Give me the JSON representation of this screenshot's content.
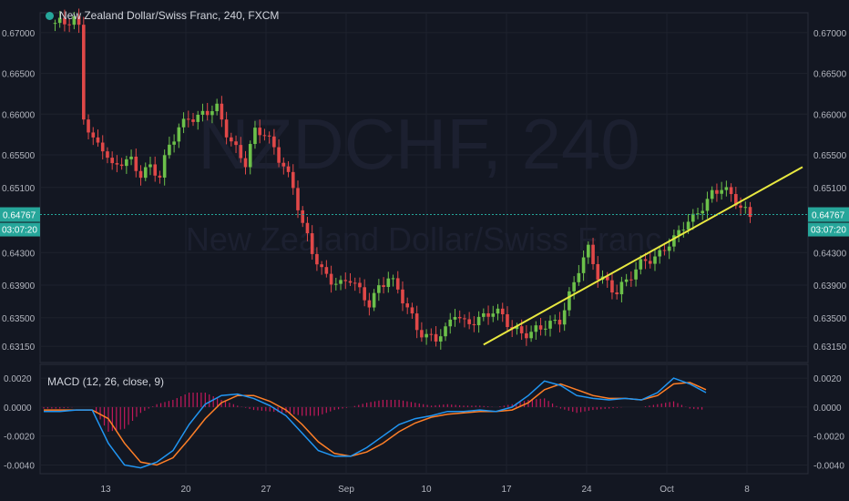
{
  "header": {
    "title": "New Zealand Dollar/Swiss Franc, 240, FXCM"
  },
  "watermark": {
    "symbol": "NZDCHF, 240",
    "name": "New Zealand Dollar/Swiss Franc"
  },
  "price_badges": {
    "last": "0.64767",
    "countdown": "03:07:20"
  },
  "macd": {
    "label": "MACD (12, 26, close, 9)"
  },
  "colors": {
    "background": "#131722",
    "grid": "#1e222d",
    "up": "#6cc04a",
    "down": "#e04848",
    "trendline": "#e8e840",
    "price_line": "#26a69a",
    "macd_line": "#2196f3",
    "signal_line": "#ff7f27",
    "hist_pos": "#c2185b",
    "hist_neg": "#c2185b"
  },
  "chart_data": [
    {
      "type": "candlestick",
      "title": "New Zealand Dollar/Swiss Franc, 240, FXCM",
      "y_ticks": [
        "0.67000",
        "0.66500",
        "0.66000",
        "0.65500",
        "0.65100",
        "0.64300",
        "0.63900",
        "0.63500",
        "0.63150"
      ],
      "y_tick_values": [
        0.67,
        0.665,
        0.66,
        0.655,
        0.651,
        0.643,
        0.639,
        0.635,
        0.6315
      ],
      "ylim": [
        0.6295,
        0.672
      ],
      "x_ticks": [
        "13",
        "20",
        "27",
        "Sep",
        "10",
        "17",
        "24",
        "Oct",
        "8"
      ],
      "last_price": 0.64767,
      "approx_closes": [
        [
          0,
          0.6712
        ],
        [
          2,
          0.6708
        ],
        [
          4,
          0.6715
        ],
        [
          5,
          0.6705
        ],
        [
          6,
          0.66
        ],
        [
          8,
          0.657
        ],
        [
          10,
          0.656
        ],
        [
          12,
          0.653
        ],
        [
          14,
          0.654
        ],
        [
          16,
          0.6545
        ],
        [
          18,
          0.653
        ],
        [
          20,
          0.6535
        ],
        [
          22,
          0.652
        ],
        [
          24,
          0.656
        ],
        [
          26,
          0.6585
        ],
        [
          28,
          0.66
        ],
        [
          30,
          0.6595
        ],
        [
          32,
          0.66
        ],
        [
          34,
          0.6605
        ],
        [
          36,
          0.658
        ],
        [
          38,
          0.656
        ],
        [
          40,
          0.654
        ],
        [
          42,
          0.6575
        ],
        [
          44,
          0.6575
        ],
        [
          46,
          0.656
        ],
        [
          48,
          0.654
        ],
        [
          50,
          0.651
        ],
        [
          52,
          0.646
        ],
        [
          54,
          0.643
        ],
        [
          56,
          0.641
        ],
        [
          58,
          0.64
        ],
        [
          60,
          0.639
        ],
        [
          62,
          0.6395
        ],
        [
          64,
          0.638
        ],
        [
          66,
          0.637
        ],
        [
          68,
          0.639
        ],
        [
          70,
          0.64
        ],
        [
          72,
          0.638
        ],
        [
          74,
          0.636
        ],
        [
          76,
          0.634
        ],
        [
          78,
          0.633
        ],
        [
          80,
          0.6325
        ],
        [
          82,
          0.633
        ],
        [
          84,
          0.6355
        ],
        [
          86,
          0.6345
        ],
        [
          88,
          0.635
        ],
        [
          90,
          0.635
        ],
        [
          92,
          0.6355
        ],
        [
          94,
          0.635
        ],
        [
          96,
          0.634
        ],
        [
          98,
          0.6335
        ],
        [
          100,
          0.633
        ],
        [
          102,
          0.6335
        ],
        [
          104,
          0.634
        ],
        [
          106,
          0.635
        ],
        [
          108,
          0.638
        ],
        [
          110,
          0.641
        ],
        [
          112,
          0.643
        ],
        [
          114,
          0.64
        ],
        [
          116,
          0.6395
        ],
        [
          118,
          0.6385
        ],
        [
          120,
          0.6395
        ],
        [
          122,
          0.6405
        ],
        [
          124,
          0.642
        ],
        [
          126,
          0.6425
        ],
        [
          128,
          0.644
        ],
        [
          130,
          0.6445
        ],
        [
          132,
          0.646
        ],
        [
          134,
          0.647
        ],
        [
          136,
          0.649
        ],
        [
          138,
          0.6505
        ],
        [
          140,
          0.651
        ],
        [
          142,
          0.6495
        ],
        [
          144,
          0.6485
        ],
        [
          146,
          0.6477
        ]
      ],
      "trendline": {
        "from": [
          90,
          0.6317
        ],
        "to": [
          157,
          0.6535
        ]
      }
    },
    {
      "type": "line",
      "title": "MACD (12, 26, close, 9)",
      "y_ticks": [
        "0.0020",
        "0.0000",
        "-0.0020",
        "-0.0040"
      ],
      "y_tick_values": [
        0.002,
        0.0,
        -0.002,
        -0.004
      ],
      "ylim": [
        -0.0046,
        0.0027
      ],
      "series": [
        {
          "name": "MACD",
          "values": [
            -0.0003,
            -0.0003,
            -0.0002,
            -0.0002,
            -0.0025,
            -0.004,
            -0.0042,
            -0.0038,
            -0.003,
            -0.0012,
            0.0002,
            0.0008,
            0.0009,
            0.0006,
            0.0001,
            -0.0006,
            -0.0018,
            -0.003,
            -0.0034,
            -0.0034,
            -0.0028,
            -0.002,
            -0.0012,
            -0.0008,
            -0.0006,
            -0.0003,
            -0.0003,
            -0.0002,
            -0.0003,
            0.0,
            0.0008,
            0.0018,
            0.0015,
            0.0008,
            0.0006,
            0.0005,
            0.0006,
            0.0005,
            0.001,
            0.002,
            0.0016,
            0.001
          ]
        },
        {
          "name": "Signal",
          "values": [
            -0.0002,
            -0.0002,
            -0.0002,
            -0.0002,
            -0.0008,
            -0.0025,
            -0.0038,
            -0.004,
            -0.0035,
            -0.0022,
            -0.0008,
            0.0003,
            0.0008,
            0.0008,
            0.0004,
            -0.0002,
            -0.0012,
            -0.0024,
            -0.0032,
            -0.0034,
            -0.0031,
            -0.0025,
            -0.0017,
            -0.0011,
            -0.0007,
            -0.0005,
            -0.0004,
            -0.0003,
            -0.0003,
            -0.0002,
            0.0003,
            0.0012,
            0.0016,
            0.0012,
            0.0008,
            0.0006,
            0.0006,
            0.0005,
            0.0008,
            0.0016,
            0.0017,
            0.0012
          ]
        }
      ]
    }
  ]
}
